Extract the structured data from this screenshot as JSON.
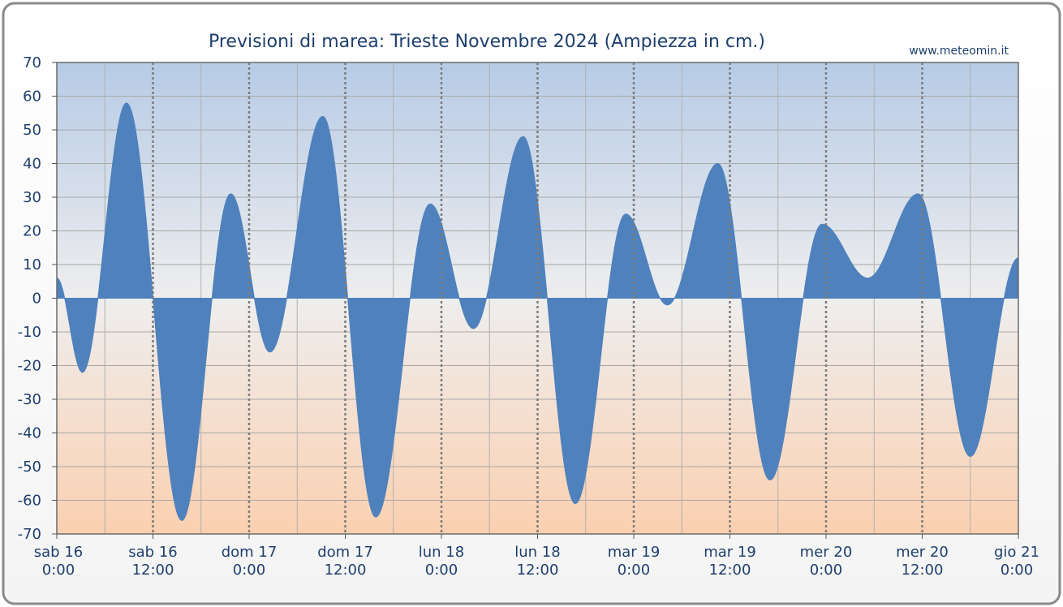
{
  "chart_data": {
    "type": "area",
    "title": "Previsioni di marea: Trieste Novembre 2024 (Ampiezza in cm.)",
    "credit": "www.meteomin.it",
    "xlabel": "",
    "ylabel": "",
    "ylim": [
      -70,
      70
    ],
    "xlim_hours": [
      0,
      120
    ],
    "y_ticks": [
      70,
      60,
      50,
      40,
      30,
      20,
      10,
      0,
      -10,
      -20,
      -30,
      -40,
      -50,
      -60,
      -70
    ],
    "x_ticks": [
      {
        "hour": 0,
        "day": "sab",
        "date": "16",
        "time": "0:00"
      },
      {
        "hour": 12,
        "day": "sab",
        "date": "16",
        "time": "12:00"
      },
      {
        "hour": 24,
        "day": "dom",
        "date": "17",
        "time": "0:00"
      },
      {
        "hour": 36,
        "day": "dom",
        "date": "17",
        "time": "12:00"
      },
      {
        "hour": 48,
        "day": "lun",
        "date": "18",
        "time": "0:00"
      },
      {
        "hour": 60,
        "day": "lun",
        "date": "18",
        "time": "12:00"
      },
      {
        "hour": 72,
        "day": "mar",
        "date": "19",
        "time": "0:00"
      },
      {
        "hour": 84,
        "day": "mar",
        "date": "19",
        "time": "12:00"
      },
      {
        "hour": 96,
        "day": "mer",
        "date": "20",
        "time": "0:00"
      },
      {
        "hour": 108,
        "day": "mer",
        "date": "20",
        "time": "12:00"
      },
      {
        "hour": 120,
        "day": "gio",
        "date": "21",
        "time": "0:00"
      }
    ],
    "grid": true,
    "colors": {
      "fill": "#4f81bd",
      "frame": "#7a7a7a",
      "text": "#1f3f6e"
    },
    "series": [
      {
        "x": [
          0,
          3.2,
          8.7,
          15.6,
          21.7,
          26.6,
          33.2,
          39.8,
          46.6,
          52.0,
          58.2,
          64.7,
          71.0,
          76.2,
          82.5,
          89.0,
          95.5,
          101.2,
          107.5,
          114.0,
          120.0
        ],
        "values": [
          6,
          -22,
          58,
          -66,
          31,
          -16,
          54,
          -65,
          28,
          -9,
          48,
          -61,
          25,
          -2,
          40,
          -54,
          22,
          6,
          31,
          -47,
          12
        ]
      }
    ]
  }
}
